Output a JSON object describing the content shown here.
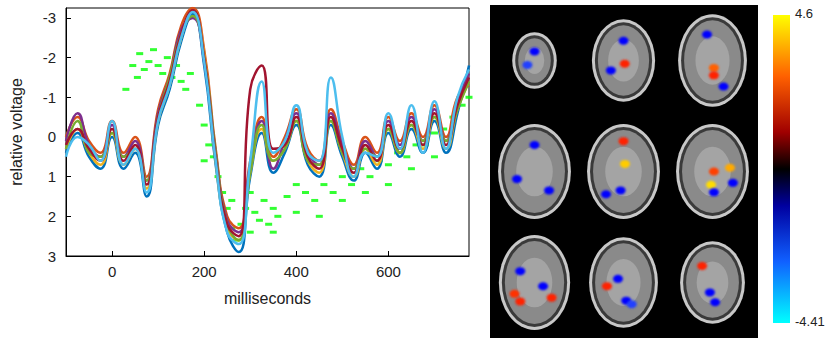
{
  "chart_data": {
    "type": "line",
    "xlabel": "milliseconds",
    "ylabel": "relative voltage",
    "xlim": [
      -100,
      775
    ],
    "ylim": [
      3,
      -3.25
    ],
    "xticks": [
      0,
      200,
      400,
      600
    ],
    "yticks": [
      -3,
      -2,
      -1,
      0,
      1,
      2,
      3
    ],
    "grid": false,
    "x": [
      -100,
      -75,
      -50,
      -25,
      0,
      25,
      50,
      75,
      100,
      125,
      150,
      175,
      200,
      225,
      250,
      275,
      300,
      325,
      350,
      375,
      400,
      425,
      450,
      475,
      500,
      525,
      550,
      575,
      600,
      625,
      650,
      675,
      700,
      725,
      750,
      775
    ],
    "series": [
      {
        "color": "#0072BD",
        "values": [
          0.4,
          -0.1,
          0.5,
          0.8,
          0.0,
          0.8,
          0.4,
          1.5,
          -0.3,
          -1.2,
          -2.4,
          -3.1,
          -1.8,
          0.7,
          2.4,
          2.9,
          1.0,
          -0.1,
          0.9,
          0.4,
          -0.3,
          0.7,
          1.0,
          -0.3,
          0.5,
          1.1,
          0.4,
          0.8,
          -0.1,
          0.5,
          -0.2,
          0.4,
          -0.4,
          0.4,
          -0.6,
          -1.8
        ]
      },
      {
        "color": "#D95319",
        "values": [
          0.0,
          -0.5,
          0.1,
          0.4,
          -0.4,
          0.4,
          0.0,
          1.0,
          -0.7,
          -1.6,
          -2.8,
          -3.25,
          -2.2,
          0.3,
          2.0,
          2.3,
          0.6,
          -0.5,
          0.5,
          0.0,
          -0.7,
          0.3,
          0.6,
          -0.7,
          0.1,
          0.7,
          0.0,
          0.4,
          -0.5,
          0.1,
          -0.6,
          0.0,
          -0.8,
          0.0,
          -1.0,
          -1.3
        ]
      },
      {
        "color": "#EDB120",
        "values": [
          0.3,
          -0.2,
          0.4,
          0.7,
          -0.1,
          0.7,
          0.3,
          1.3,
          -0.4,
          -1.3,
          -2.5,
          -3.2,
          -2.1,
          0.6,
          2.3,
          2.6,
          0.9,
          -0.2,
          0.6,
          0.3,
          -0.4,
          0.6,
          0.9,
          -0.4,
          0.4,
          1.0,
          0.3,
          0.7,
          -0.2,
          0.4,
          -0.3,
          0.3,
          -0.5,
          0.3,
          -0.7,
          -1.4
        ]
      },
      {
        "color": "#7E2F8E",
        "values": [
          0.1,
          -0.6,
          0.2,
          0.5,
          -0.3,
          0.5,
          0.1,
          1.1,
          -0.6,
          -1.5,
          -2.7,
          -3.0,
          -1.9,
          0.4,
          2.1,
          2.4,
          0.7,
          -0.4,
          0.8,
          0.1,
          -0.6,
          0.4,
          0.7,
          -0.6,
          0.2,
          0.8,
          0.1,
          0.5,
          -0.4,
          0.2,
          -0.5,
          0.1,
          -0.7,
          0.1,
          -0.9,
          -1.6
        ]
      },
      {
        "color": "#77AC30",
        "values": [
          0.3,
          -0.4,
          0.4,
          0.5,
          -0.1,
          0.5,
          0.3,
          1.1,
          -0.5,
          -1.5,
          -2.6,
          -3.05,
          -2.0,
          0.4,
          2.2,
          2.6,
          0.9,
          -0.3,
          0.6,
          0.3,
          -0.4,
          0.6,
          0.7,
          -0.4,
          0.4,
          0.8,
          0.3,
          0.5,
          -0.2,
          0.4,
          -0.3,
          0.1,
          -0.5,
          0.1,
          -0.7,
          -1.4
        ]
      },
      {
        "color": "#A2142F",
        "values": [
          0.2,
          -0.2,
          0.3,
          0.6,
          -0.2,
          0.6,
          0.2,
          1.2,
          -0.5,
          -1.4,
          -2.6,
          -3.2,
          -2.0,
          0.5,
          2.2,
          2.5,
          -1.2,
          -1.8,
          0.3,
          0.2,
          -0.5,
          0.5,
          0.8,
          -0.5,
          0.3,
          0.9,
          0.2,
          0.6,
          -0.3,
          0.3,
          -0.4,
          0.2,
          -0.6,
          0.2,
          -0.8,
          -1.5
        ]
      },
      {
        "color": "#4DBEEE",
        "values": [
          0.5,
          0.0,
          0.2,
          0.6,
          -0.4,
          0.7,
          0.3,
          1.4,
          -0.4,
          -1.3,
          -2.5,
          -3.15,
          -1.9,
          0.6,
          2.4,
          2.7,
          0.6,
          -1.4,
          0.4,
          0.1,
          -0.8,
          0.4,
          0.6,
          -1.5,
          0.0,
          1.0,
          0.4,
          0.5,
          -0.6,
          0.3,
          -0.8,
          0.4,
          -0.9,
          0.3,
          -1.0,
          -1.7
        ]
      },
      {
        "type": "scatter",
        "color": "#00FF00",
        "marker": "rect",
        "x": [
          30,
          45,
          55,
          60,
          70,
          80,
          90,
          100,
          110,
          120,
          130,
          140,
          150,
          160,
          170,
          190,
          200,
          210,
          220,
          230,
          240,
          250,
          260,
          270,
          280,
          290,
          300,
          310,
          320,
          330,
          340,
          350,
          360,
          380,
          400,
          420,
          440,
          460,
          480,
          500,
          520,
          540,
          560,
          580,
          600,
          620,
          640,
          660,
          680,
          700,
          720,
          740,
          760,
          775,
          200,
          260,
          300,
          350,
          400,
          450,
          500,
          550,
          600,
          650,
          700
        ],
        "values": [
          -1.2,
          -1.8,
          -1.5,
          -2.1,
          -1.7,
          -1.9,
          -2.2,
          -1.8,
          -1.6,
          -2.0,
          -1.5,
          -1.8,
          -1.4,
          -1.2,
          -1.6,
          -0.8,
          -0.3,
          0.2,
          0.5,
          1.0,
          1.4,
          1.8,
          2.3,
          2.6,
          2.2,
          1.8,
          2.4,
          1.9,
          2.1,
          1.6,
          2.2,
          1.8,
          2.0,
          1.5,
          1.9,
          1.4,
          1.6,
          1.2,
          1.4,
          1.0,
          1.2,
          0.8,
          1.0,
          0.6,
          0.7,
          0.4,
          0.5,
          0.2,
          0.2,
          -0.1,
          -0.2,
          -0.5,
          -0.8,
          -1.0,
          0.6,
          1.6,
          1.4,
          2.4,
          1.2,
          2.0,
          1.6,
          1.4,
          1.2,
          0.8,
          0.5
        ]
      }
    ]
  },
  "image": {
    "colorbar": {
      "range": [
        -4.41,
        4.6
      ],
      "ticks": [
        4.6,
        -4.41
      ]
    }
  }
}
